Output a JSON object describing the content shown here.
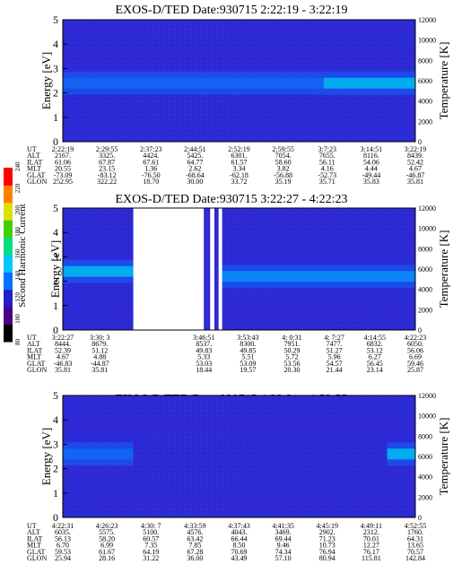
{
  "panels": [
    {
      "title": "EXOS-D/TED   Date:930715  2:22:19 - 3:22:19",
      "ylabel_left": "Energy [eV]",
      "ylabel_right": "Temperature [K]",
      "yticks_left": [
        "0",
        "1",
        "2",
        "3",
        "4",
        "5"
      ],
      "yticks_right": [
        "0",
        "2000",
        "4000",
        "6000",
        "8000",
        "10000",
        "12000"
      ],
      "table_labels": [
        "UT",
        "ALT",
        "ILAT",
        "MLT",
        "GLAT",
        "GLON"
      ],
      "columns": [
        [
          "2:22:19",
          "2167.",
          "61.06",
          "20.55",
          "-73.09",
          "252.95"
        ],
        [
          "2:29:55",
          "3325.",
          "67.87",
          "23.15",
          "-83.12",
          "322.22"
        ],
        [
          "2:37:23",
          "4424.",
          "67.61",
          "1.36",
          "-76.50",
          "18.70"
        ],
        [
          "2:44:51",
          "5425.",
          "64.77",
          "2.62",
          "-68.64",
          "30.00"
        ],
        [
          "2:52:19",
          "6301.",
          "61.57",
          "3.34",
          "-62.18",
          "33.72"
        ],
        [
          "2:59:55",
          "7054.",
          "58.60",
          "3.82",
          "-56.88",
          "35.19"
        ],
        [
          "3:7:23",
          "7655.",
          "56.11",
          "4.16",
          "-52.73",
          "35.71"
        ],
        [
          "3:14:51",
          "8116.",
          "54.06",
          "4.44",
          "-49.44",
          "35.83"
        ],
        [
          "3:22:19",
          "8439.",
          "52.42",
          "4.67",
          "-46.87",
          "35.81"
        ]
      ]
    },
    {
      "title": "EXOS-D/TED   Date:930715  3:22:27 - 4:22:23",
      "ylabel_left": "Energy [eV]",
      "ylabel_right": "Temperature [K]",
      "yticks_left": [
        "0",
        "1",
        "2",
        "3",
        "4",
        "5"
      ],
      "yticks_right": [
        "0",
        "2000",
        "4000",
        "6000",
        "8000",
        "10000",
        "12000"
      ],
      "table_labels": [
        "UT",
        "ALT",
        "ILAT",
        "MLT",
        "GLAT",
        "GLON"
      ],
      "columns": [
        [
          "3:22:27",
          "8444.",
          "52.39",
          "4.67",
          "-46.83",
          "35.81"
        ],
        [
          "3:30: 3",
          "8679.",
          "51.12",
          "4.88",
          "-44.87",
          "35.81"
        ],
        [
          "3:46:51",
          "8537.",
          "49.83",
          "5.33",
          "53.03",
          "18.44"
        ],
        [
          "3:53:43",
          "8300.",
          "49.85",
          "5.51",
          "53.09",
          "19.57"
        ],
        [
          "4: 0:31",
          "7951.",
          "50.29",
          "5.72",
          "53.56",
          "20.30"
        ],
        [
          "4: 7:27",
          "7477.",
          "51.27",
          "5.96",
          "54.57",
          "21.44"
        ],
        [
          "4:14:55",
          "6832.",
          "53.12",
          "6.27",
          "56.45",
          "23.14"
        ],
        [
          "4:22:23",
          "6050.",
          "56.06",
          "6.69",
          "59.46",
          "25.87"
        ]
      ]
    },
    {
      "title": "EXOS-D/TED   Date:930715  4:22:31 - 4:52:55",
      "ylabel_left": "Energy [eV]",
      "ylabel_right": "Temperature [K]",
      "yticks_left": [
        "0",
        "1",
        "2",
        "3",
        "4",
        "5"
      ],
      "yticks_right": [
        "0",
        "2000",
        "4000",
        "6000",
        "8000",
        "10000",
        "12000"
      ],
      "table_labels": [
        "UT",
        "ALT",
        "ILAT",
        "MLT",
        "GLAT",
        "GLON"
      ],
      "columns": [
        [
          "4:22:31",
          "6035.",
          "56.13",
          "6.70",
          "59.53",
          "25.94"
        ],
        [
          "4:26:23",
          "5575.",
          "58.20",
          "6.99",
          "61.67",
          "28.16"
        ],
        [
          "4:30: 7",
          "5100.",
          "60.57",
          "7.35",
          "64.19",
          "31.22"
        ],
        [
          "4:33:59",
          "4576.",
          "63.42",
          "7.85",
          "67.28",
          "36.00"
        ],
        [
          "4:37:43",
          "4043.",
          "66.44",
          "8.50",
          "70.69",
          "43.49"
        ],
        [
          "4:41:35",
          "3469.",
          "69.44",
          "9.46",
          "74.34",
          "57.10"
        ],
        [
          "4:45:19",
          "2902.",
          "71.23",
          "10.73",
          "76.94",
          "80.94"
        ],
        [
          "4:49:11",
          "2312.",
          "70.01",
          "12.27",
          "76.17",
          "115.81"
        ],
        [
          "4:52:55",
          "1760.",
          "64.31",
          "13.65",
          "70.57",
          "142.84"
        ]
      ]
    }
  ],
  "colorbar": {
    "label": "Second Harmonic Current",
    "ticks": [
      "80",
      "100",
      "120",
      "140",
      "160",
      "180",
      "200",
      "220",
      "240"
    ],
    "colors": [
      "#000000",
      "#4b0082",
      "#2020c8",
      "#0070ff",
      "#00c8ff",
      "#00e080",
      "#40d000",
      "#e0e000",
      "#ff8000",
      "#ff0000"
    ]
  },
  "chart_data": [
    {
      "type": "heatmap",
      "title": "EXOS-D/TED   Date:930715  2:22:19 - 3:22:19",
      "ylabel": "Energy [eV]",
      "y2label": "Temperature [K]",
      "ylim": [
        0,
        5
      ],
      "y2lim": [
        0,
        12000
      ],
      "x": [
        "2:22:19",
        "2:29:55",
        "2:37:23",
        "2:44:51",
        "2:52:19",
        "2:59:55",
        "3:7:23",
        "3:14:51",
        "3:22:19"
      ],
      "features": [
        {
          "x_from_frac": 0.0,
          "x_to_frac": 0.74,
          "energy_center": 2.4,
          "intensity": 140
        },
        {
          "x_from_frac": 0.74,
          "x_to_frac": 1.0,
          "energy_center": 2.4,
          "intensity": 170
        }
      ]
    },
    {
      "type": "heatmap",
      "title": "EXOS-D/TED   Date:930715  3:22:27 - 4:22:23",
      "ylabel": "Energy [eV]",
      "y2label": "Temperature [K]",
      "ylim": [
        0,
        5
      ],
      "y2lim": [
        0,
        12000
      ],
      "x": [
        "3:22:27",
        "3:30: 3",
        "3:46:51",
        "3:53:43",
        "4: 0:31",
        "4: 7:27",
        "4:14:55",
        "4:22:23"
      ],
      "gaps": [
        [
          0.2,
          0.4
        ],
        [
          0.418,
          0.43
        ],
        [
          0.442,
          0.452
        ]
      ],
      "features": [
        {
          "x_from_frac": 0.0,
          "x_to_frac": 0.2,
          "energy_center": 2.4,
          "intensity": 175
        },
        {
          "x_from_frac": 0.45,
          "x_to_frac": 1.0,
          "energy_center": 2.2,
          "intensity": 165
        }
      ]
    },
    {
      "type": "heatmap",
      "title": "EXOS-D/TED   Date:930715  4:22:31 - 4:52:55",
      "ylabel": "Energy [eV]",
      "y2label": "Temperature [K]",
      "ylim": [
        0,
        5
      ],
      "y2lim": [
        0,
        12000
      ],
      "x": [
        "4:22:31",
        "4:26:23",
        "4:30: 7",
        "4:33:59",
        "4:37:43",
        "4:41:35",
        "4:45:19",
        "4:49:11",
        "4:52:55"
      ],
      "features": [
        {
          "x_from_frac": 0.0,
          "x_to_frac": 0.2,
          "energy_center": 2.6,
          "intensity": 150
        },
        {
          "x_from_frac": 0.92,
          "x_to_frac": 1.0,
          "energy_center": 2.6,
          "intensity": 170
        }
      ]
    }
  ]
}
